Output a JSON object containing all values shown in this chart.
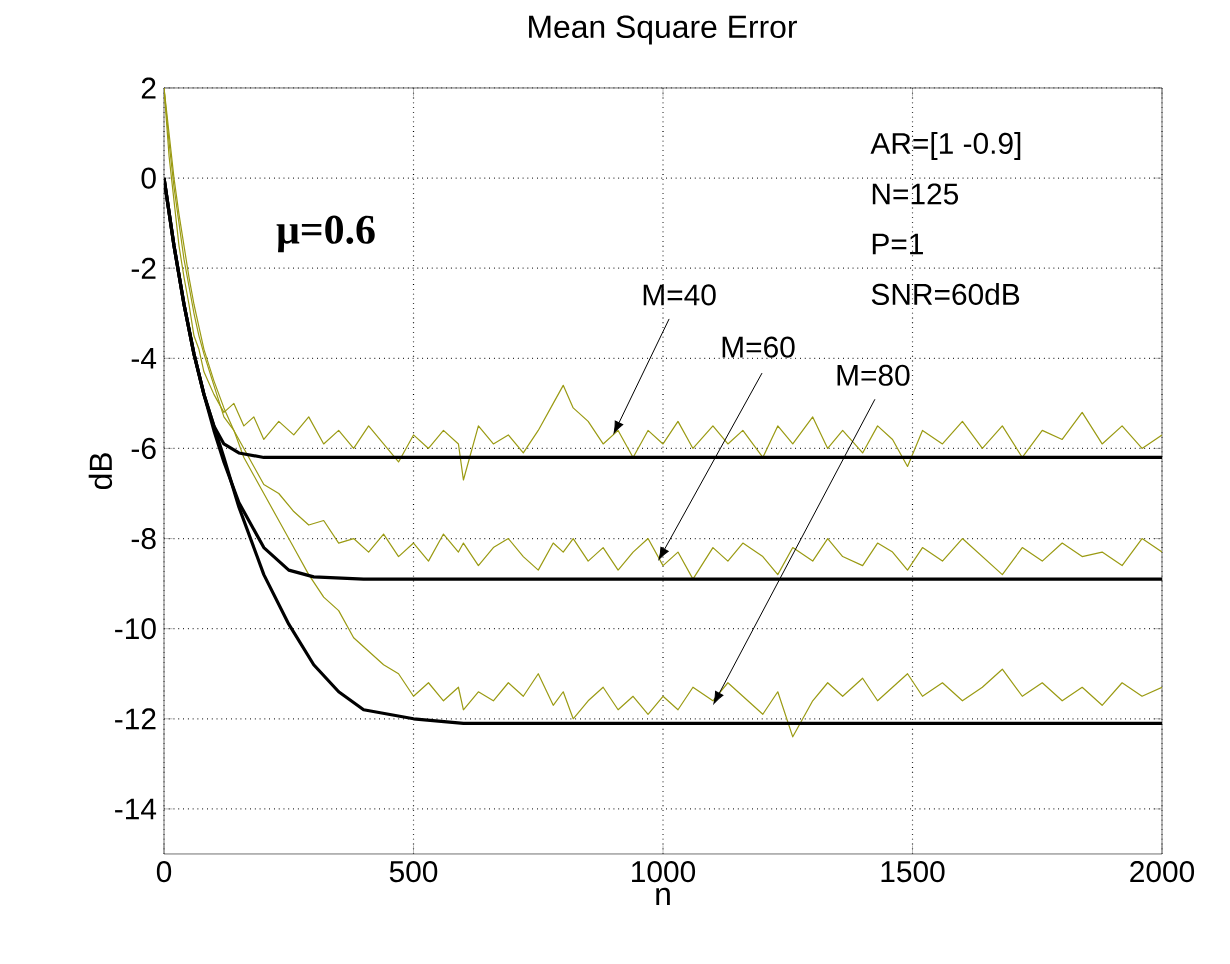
{
  "chart_data": {
    "type": "line",
    "title": "Mean Square Error",
    "xlabel": "n",
    "ylabel": "dB",
    "xlim": [
      0,
      2000
    ],
    "ylim": [
      -15,
      2
    ],
    "xticks": [
      0,
      500,
      1000,
      1500,
      2000
    ],
    "yticks": [
      -14,
      -12,
      -10,
      -8,
      -6,
      -4,
      -2,
      0,
      2
    ],
    "grid": true,
    "marker": "none",
    "line_style": "solid",
    "series": [
      {
        "color": "#9a9a12",
        "x": [
          0,
          10,
          20,
          30,
          40,
          50,
          60,
          70,
          80,
          100,
          120,
          140,
          160,
          180,
          200,
          230,
          260,
          290,
          320,
          350,
          380,
          410,
          440,
          470,
          500,
          530,
          560,
          590,
          600,
          630,
          660,
          690,
          720,
          750,
          780,
          800,
          820,
          850,
          880,
          910,
          940,
          970,
          1000,
          1030,
          1060,
          1100,
          1130,
          1160,
          1200,
          1230,
          1260,
          1300,
          1330,
          1360,
          1400,
          1430,
          1460,
          1490,
          1520,
          1560,
          1600,
          1640,
          1680,
          1720,
          1760,
          1800,
          1840,
          1880,
          1920,
          1960,
          2000
        ],
        "values": [
          2,
          0.5,
          -0.5,
          -1.5,
          -2.2,
          -2.8,
          -3.5,
          -3.8,
          -4.3,
          -4.8,
          -5.2,
          -5.0,
          -5.5,
          -5.3,
          -5.8,
          -5.4,
          -5.7,
          -5.3,
          -5.9,
          -5.6,
          -6.0,
          -5.5,
          -5.9,
          -6.3,
          -5.7,
          -6.0,
          -5.6,
          -5.9,
          -6.7,
          -5.5,
          -5.9,
          -5.7,
          -6.1,
          -5.6,
          -5.0,
          -4.6,
          -5.1,
          -5.4,
          -5.9,
          -5.6,
          -6.2,
          -5.6,
          -5.9,
          -5.4,
          -6.0,
          -5.5,
          -5.9,
          -5.6,
          -6.2,
          -5.5,
          -5.9,
          -5.3,
          -6.0,
          -5.6,
          -6.1,
          -5.5,
          -5.8,
          -6.4,
          -5.6,
          -5.9,
          -5.4,
          -6.0,
          -5.5,
          -6.2,
          -5.6,
          -5.8,
          -5.2,
          -5.9,
          -5.5,
          -6.0,
          -5.7
        ]
      },
      {
        "color": "#9a9a12",
        "x": [
          0,
          10,
          20,
          30,
          40,
          50,
          60,
          70,
          80,
          100,
          120,
          140,
          160,
          180,
          200,
          230,
          260,
          290,
          320,
          350,
          380,
          410,
          440,
          470,
          500,
          530,
          560,
          590,
          600,
          630,
          660,
          690,
          720,
          750,
          780,
          800,
          820,
          850,
          880,
          910,
          940,
          970,
          1000,
          1030,
          1060,
          1100,
          1130,
          1160,
          1200,
          1230,
          1260,
          1300,
          1330,
          1360,
          1400,
          1430,
          1460,
          1490,
          1520,
          1560,
          1600,
          1640,
          1680,
          1720,
          1760,
          1800,
          1840,
          1880,
          1920,
          1960,
          2000
        ],
        "values": [
          2,
          0.8,
          -0.2,
          -1.0,
          -1.8,
          -2.4,
          -3.0,
          -3.5,
          -3.9,
          -4.6,
          -5.3,
          -5.6,
          -6.0,
          -6.4,
          -6.8,
          -7.0,
          -7.4,
          -7.7,
          -7.6,
          -8.1,
          -8.0,
          -8.3,
          -7.9,
          -8.4,
          -8.1,
          -8.5,
          -7.9,
          -8.3,
          -8.1,
          -8.6,
          -8.2,
          -8.0,
          -8.4,
          -8.7,
          -8.1,
          -8.3,
          -8.0,
          -8.5,
          -8.2,
          -8.7,
          -8.3,
          -8.0,
          -8.6,
          -8.3,
          -8.9,
          -8.2,
          -8.5,
          -8.1,
          -8.4,
          -8.8,
          -8.2,
          -8.5,
          -8.0,
          -8.4,
          -8.6,
          -8.1,
          -8.3,
          -8.7,
          -8.2,
          -8.5,
          -8.0,
          -8.4,
          -8.8,
          -8.2,
          -8.5,
          -8.1,
          -8.4,
          -8.3,
          -8.6,
          -8.0,
          -8.3
        ]
      },
      {
        "color": "#9a9a12",
        "x": [
          0,
          10,
          20,
          30,
          40,
          50,
          60,
          70,
          80,
          100,
          120,
          140,
          160,
          180,
          200,
          230,
          260,
          290,
          320,
          350,
          380,
          410,
          440,
          470,
          500,
          530,
          560,
          590,
          600,
          630,
          660,
          690,
          720,
          750,
          780,
          800,
          820,
          850,
          880,
          910,
          940,
          970,
          1000,
          1030,
          1060,
          1100,
          1130,
          1160,
          1200,
          1230,
          1260,
          1300,
          1330,
          1360,
          1400,
          1430,
          1460,
          1490,
          1520,
          1560,
          1600,
          1640,
          1680,
          1720,
          1760,
          1800,
          1840,
          1880,
          1920,
          1960,
          2000
        ],
        "values": [
          2,
          1.0,
          0,
          -0.8,
          -1.5,
          -2.2,
          -2.8,
          -3.3,
          -3.8,
          -4.5,
          -5.1,
          -5.6,
          -6.2,
          -6.6,
          -7.0,
          -7.6,
          -8.2,
          -8.8,
          -9.3,
          -9.6,
          -10.2,
          -10.5,
          -10.8,
          -11.0,
          -11.5,
          -11.2,
          -11.6,
          -11.3,
          -11.8,
          -11.4,
          -11.6,
          -11.2,
          -11.5,
          -11.0,
          -11.7,
          -11.4,
          -12.0,
          -11.6,
          -11.3,
          -11.8,
          -11.5,
          -11.9,
          -11.5,
          -11.8,
          -11.3,
          -11.6,
          -11.2,
          -11.5,
          -11.9,
          -11.4,
          -12.4,
          -11.6,
          -11.2,
          -11.5,
          -11.1,
          -11.6,
          -11.3,
          -11.0,
          -11.5,
          -11.2,
          -11.6,
          -11.3,
          -10.9,
          -11.5,
          -11.2,
          -11.6,
          -11.3,
          -11.7,
          -11.2,
          -11.5,
          -11.3
        ]
      },
      {
        "color": "#000000",
        "x": [
          0,
          20,
          40,
          60,
          80,
          100,
          120,
          150,
          200,
          2000
        ],
        "values": [
          0,
          -1.5,
          -2.8,
          -3.9,
          -4.8,
          -5.5,
          -5.9,
          -6.1,
          -6.2,
          -6.2
        ]
      },
      {
        "color": "#000000",
        "x": [
          0,
          20,
          40,
          60,
          80,
          100,
          120,
          150,
          200,
          250,
          300,
          400,
          2000
        ],
        "values": [
          0,
          -1.5,
          -2.8,
          -3.9,
          -4.8,
          -5.6,
          -6.3,
          -7.2,
          -8.2,
          -8.7,
          -8.85,
          -8.9,
          -8.9
        ]
      },
      {
        "color": "#000000",
        "x": [
          0,
          20,
          40,
          60,
          80,
          100,
          120,
          150,
          200,
          250,
          300,
          350,
          400,
          500,
          600,
          2000
        ],
        "values": [
          0,
          -1.5,
          -2.8,
          -3.9,
          -4.8,
          -5.5,
          -6.2,
          -7.3,
          -8.8,
          -9.9,
          -10.8,
          -11.4,
          -11.8,
          -12.0,
          -12.1,
          -12.1
        ]
      }
    ],
    "annotations": [
      "μ=0.6",
      "AR=[1 -0.9]",
      "N=125",
      "P=1",
      "SNR=60dB",
      {
        "text": "M=40",
        "x": 900,
        "y": -5.7
      },
      {
        "text": "M=60",
        "x": 990,
        "y": -8.5
      },
      {
        "text": "M=80",
        "x": 1100,
        "y": -11.7
      }
    ]
  }
}
